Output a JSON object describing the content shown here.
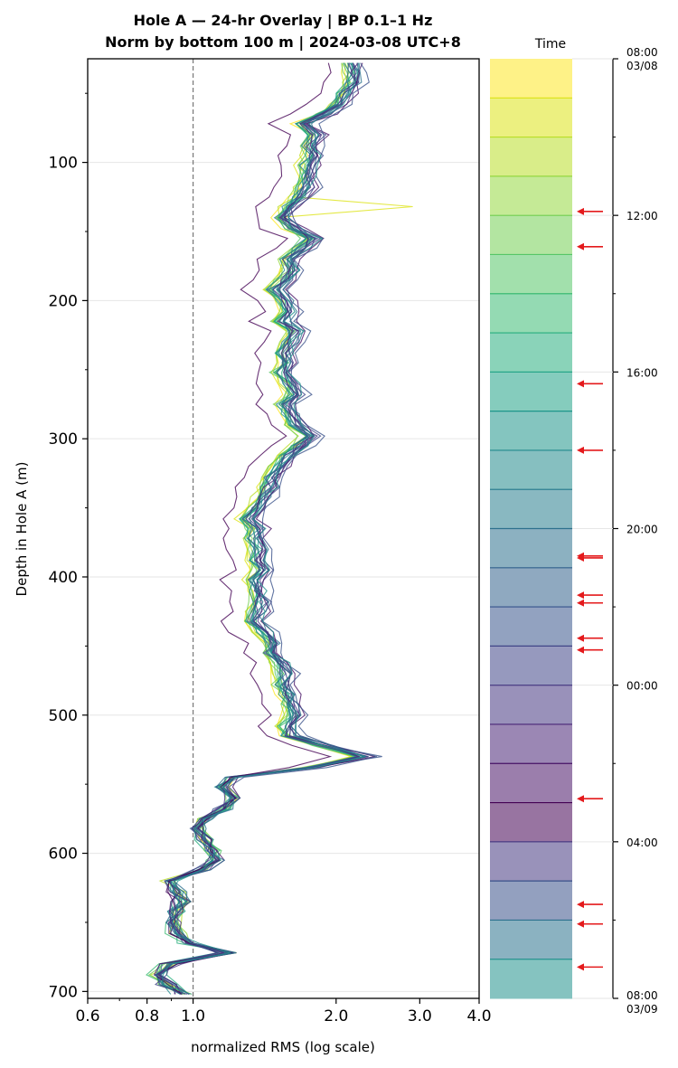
{
  "chart_data": {
    "type": "line",
    "title_lines": [
      "Hole A — 24-hr Overlay  |  BP 0.1–1 Hz",
      "Norm by bottom 100 m  |  2024-03-08 UTC+8"
    ],
    "xlabel": "normalized RMS  (log scale)",
    "ylabel": "Depth in Hole A (m)",
    "x_scale": "log",
    "xlim": [
      0.6,
      4.0
    ],
    "ylim": [
      705,
      25
    ],
    "x_ticks": [
      {
        "value": 0.6,
        "label": "0.6"
      },
      {
        "value": 0.8,
        "label": "0.8"
      },
      {
        "value": 1.0,
        "label": "1.0"
      },
      {
        "value": 2.0,
        "label": "2.0"
      },
      {
        "value": 3.0,
        "label": "3.0"
      },
      {
        "value": 4.0,
        "label": "4.0"
      }
    ],
    "y_ticks": [
      100,
      200,
      300,
      400,
      500,
      600,
      700
    ],
    "reference_line_x": 1.0,
    "grid": "horizontal at major depth ticks",
    "depth_base": [
      28,
      35,
      42,
      50,
      58,
      65,
      72,
      80,
      88,
      95,
      102,
      110,
      118,
      125,
      132,
      140,
      148,
      155,
      162,
      170,
      178,
      185,
      192,
      200,
      208,
      215,
      222,
      230,
      238,
      245,
      252,
      260,
      268,
      275,
      282,
      290,
      298,
      305,
      312,
      320,
      328,
      335,
      342,
      350,
      358,
      365,
      372,
      380,
      388,
      395,
      402,
      410,
      418,
      425,
      432,
      440,
      448,
      455,
      462,
      470,
      478,
      485,
      492,
      500,
      508,
      515,
      522,
      530,
      538,
      545,
      552,
      560,
      568,
      575,
      582,
      590,
      598,
      605,
      612,
      620,
      628,
      635,
      642,
      650,
      658,
      665,
      672,
      680,
      688,
      695,
      702
    ],
    "rms_base": [
      2.18,
      2.22,
      2.2,
      2.12,
      2.05,
      1.92,
      1.72,
      1.84,
      1.78,
      1.8,
      1.76,
      1.78,
      1.75,
      1.7,
      1.6,
      1.56,
      1.64,
      1.8,
      1.7,
      1.6,
      1.64,
      1.58,
      1.5,
      1.58,
      1.62,
      1.56,
      1.66,
      1.62,
      1.58,
      1.6,
      1.55,
      1.62,
      1.66,
      1.58,
      1.62,
      1.66,
      1.78,
      1.7,
      1.6,
      1.54,
      1.48,
      1.46,
      1.42,
      1.38,
      1.32,
      1.38,
      1.36,
      1.4,
      1.38,
      1.42,
      1.36,
      1.38,
      1.4,
      1.38,
      1.36,
      1.42,
      1.5,
      1.46,
      1.54,
      1.58,
      1.56,
      1.6,
      1.62,
      1.66,
      1.6,
      1.62,
      1.9,
      2.3,
      1.8,
      1.22,
      1.16,
      1.22,
      1.16,
      1.06,
      1.02,
      1.06,
      1.1,
      1.12,
      1.04,
      0.9,
      0.92,
      0.94,
      0.92,
      0.9,
      0.92,
      0.98,
      1.18,
      0.9,
      0.84,
      0.88,
      0.95
    ],
    "spikes": [
      {
        "depth": 132,
        "rms": 2.9,
        "series": 1
      },
      {
        "depth": 530,
        "rms": 2.5,
        "series": 14
      },
      {
        "depth": 670,
        "rms": 1.2,
        "series": 23
      }
    ],
    "series_count": 24,
    "series_colors": [
      "#fde725",
      "#dde318",
      "#bade28",
      "#95d840",
      "#75d054",
      "#56c667",
      "#3dbc74",
      "#29af7f",
      "#20a386",
      "#1f968b",
      "#238a8d",
      "#287d8e",
      "#2d718e",
      "#33638d",
      "#39558c",
      "#404688",
      "#453781",
      "#482576",
      "#481467",
      "#440154",
      "#453882",
      "#3b528b",
      "#2c728e",
      "#21918c"
    ],
    "colorbar": {
      "title": "Time",
      "bands": 24,
      "ticks": [
        {
          "hour": 0,
          "label": "08:00",
          "sublabel": "03/08"
        },
        {
          "hour": 4,
          "label": "12:00",
          "sublabel": ""
        },
        {
          "hour": 8,
          "label": "16:00",
          "sublabel": ""
        },
        {
          "hour": 12,
          "label": "20:00",
          "sublabel": ""
        },
        {
          "hour": 16,
          "label": "00:00",
          "sublabel": ""
        },
        {
          "hour": 20,
          "label": "04:00",
          "sublabel": ""
        },
        {
          "hour": 24,
          "label": "08:00",
          "sublabel": "03/09"
        }
      ],
      "marker_color": "#e41a1c",
      "event_markers_hours": [
        3.9,
        4.8,
        8.3,
        10.0,
        12.7,
        12.75,
        13.7,
        13.9,
        14.8,
        15.1,
        18.9,
        21.6,
        22.1,
        23.2
      ]
    }
  }
}
